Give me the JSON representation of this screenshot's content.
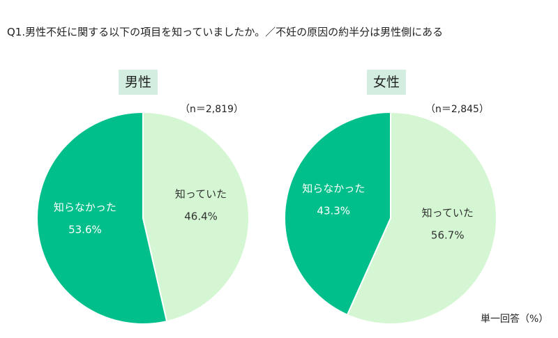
{
  "chart_data": [
    {
      "type": "pie",
      "title": "男性",
      "n_label": "（n＝2,819）",
      "slices": [
        {
          "label": "知っていた",
          "value": 46.4,
          "value_label": "46.4%",
          "color": "#d4f6d2"
        },
        {
          "label": "知らなかった",
          "value": 53.6,
          "value_label": "53.6%",
          "color": "#00bf8a"
        }
      ]
    },
    {
      "type": "pie",
      "title": "女性",
      "n_label": "（n＝2,845）",
      "slices": [
        {
          "label": "知っていた",
          "value": 56.7,
          "value_label": "56.7%",
          "color": "#d4f6d2"
        },
        {
          "label": "知らなかった",
          "value": 43.3,
          "value_label": "43.3%",
          "color": "#00bf8a"
        }
      ]
    }
  ],
  "question": "Q1.男性不妊に関する以下の項目を知っていましたか。／不妊の原因の約半分は男性側にある",
  "note": "単一回答（%）"
}
